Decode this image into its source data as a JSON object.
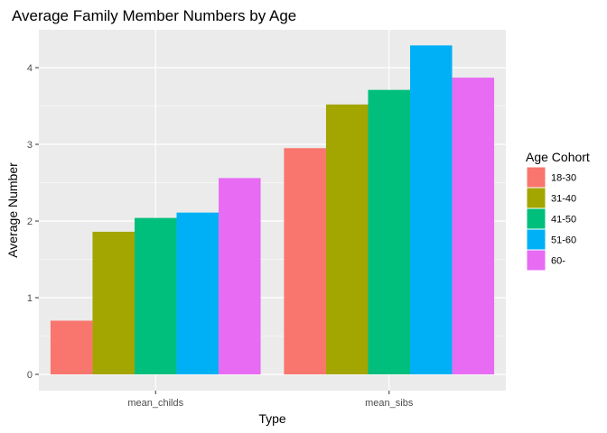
{
  "chart_data": {
    "type": "bar",
    "title": "Average Family Member Numbers by Age",
    "xlabel": "Type",
    "ylabel": "Average Number",
    "categories": [
      "mean_childs",
      "mean_sibs"
    ],
    "ylim": [
      0,
      4.4
    ],
    "yticks": [
      0,
      1,
      2,
      3,
      4
    ],
    "grid": true,
    "legend": {
      "title": "Age Cohort",
      "position": "right"
    },
    "series": [
      {
        "name": "18-30",
        "color": "#F8766D",
        "values": [
          0.7,
          2.95
        ]
      },
      {
        "name": "31-40",
        "color": "#A3A500",
        "values": [
          1.86,
          3.52
        ]
      },
      {
        "name": "41-50",
        "color": "#00BF7D",
        "values": [
          2.04,
          3.71
        ]
      },
      {
        "name": "51-60",
        "color": "#00B0F6",
        "values": [
          2.11,
          4.29
        ]
      },
      {
        "name": "60-",
        "color": "#E76BF3",
        "values": [
          2.56,
          3.87
        ]
      }
    ],
    "panel_background": "#EBEBEB",
    "grid_color": "#FFFFFF"
  }
}
